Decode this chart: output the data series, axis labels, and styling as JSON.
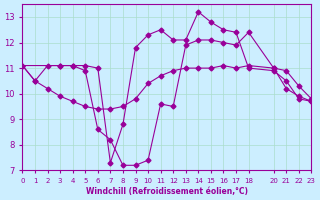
{
  "xlabel": "Windchill (Refroidissement éolien,°C)",
  "ylabel": "",
  "xlim": [
    0,
    23
  ],
  "ylim": [
    7,
    13.5
  ],
  "xticks": [
    0,
    1,
    2,
    3,
    4,
    5,
    6,
    7,
    8,
    9,
    10,
    11,
    12,
    13,
    14,
    15,
    16,
    17,
    18,
    20,
    21,
    22,
    23
  ],
  "yticks": [
    7,
    8,
    9,
    10,
    11,
    12,
    13
  ],
  "bg_color": "#cceeff",
  "line_color": "#990099",
  "grid_color": "#aaddcc",
  "series": [
    {
      "x": [
        0,
        1,
        2,
        3,
        4,
        5,
        6,
        7,
        8,
        9,
        10,
        11,
        12,
        13,
        14,
        15,
        16,
        17,
        18,
        20,
        21,
        22,
        23
      ],
      "y": [
        11.1,
        10.5,
        10.2,
        9.9,
        9.7,
        9.5,
        9.4,
        9.4,
        9.5,
        9.8,
        10.4,
        10.7,
        10.9,
        11.0,
        11.0,
        11.0,
        11.1,
        11.0,
        11.1,
        11.0,
        10.9,
        10.3,
        9.8
      ]
    },
    {
      "x": [
        0,
        1,
        2,
        3,
        4,
        5,
        6,
        7,
        8,
        9,
        10,
        11,
        12,
        13,
        14,
        15,
        16,
        17,
        18,
        20,
        21,
        22,
        23
      ],
      "y": [
        11.1,
        10.5,
        11.1,
        11.1,
        11.1,
        10.9,
        8.6,
        8.2,
        7.2,
        7.2,
        7.4,
        9.6,
        9.5,
        11.9,
        12.1,
        12.1,
        12.0,
        11.9,
        12.4,
        11.0,
        10.2,
        9.9,
        9.7
      ]
    },
    {
      "x": [
        0,
        3,
        4,
        5,
        6,
        7,
        8,
        9,
        10,
        11,
        12,
        13,
        14,
        15,
        16,
        17,
        18,
        20,
        21,
        22,
        23
      ],
      "y": [
        11.1,
        11.1,
        11.1,
        11.1,
        11.0,
        7.3,
        8.8,
        11.8,
        12.3,
        12.5,
        12.1,
        12.1,
        13.2,
        12.8,
        12.5,
        12.4,
        11.0,
        10.9,
        10.5,
        9.8,
        9.7
      ]
    }
  ]
}
